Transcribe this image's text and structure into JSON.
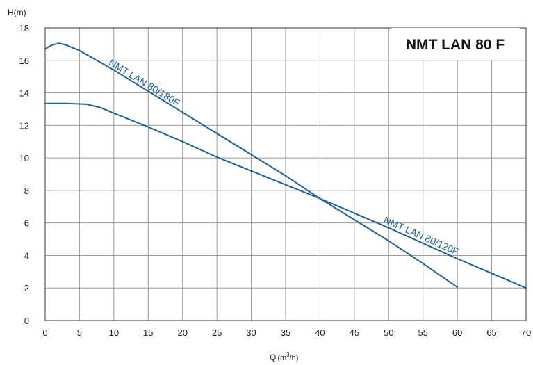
{
  "chart_data": {
    "type": "line",
    "title": "NMT LAN 80 F",
    "xlabel": "Q (m³/h)",
    "ylabel": "H(m)",
    "xlim": [
      0,
      70
    ],
    "ylim": [
      0,
      18
    ],
    "x_ticks": [
      "0",
      "5",
      "10",
      "15",
      "20",
      "25",
      "30",
      "35",
      "40",
      "45",
      "50",
      "55",
      "60",
      "65",
      "70"
    ],
    "y_ticks": [
      "0",
      "2",
      "4",
      "6",
      "8",
      "10",
      "12",
      "14",
      "16",
      "18"
    ],
    "grid": true,
    "line_color": "#1f5f9a",
    "series": [
      {
        "name": "NMT LAN 80/180F",
        "points": [
          [
            0,
            16.7
          ],
          [
            1,
            16.95
          ],
          [
            2,
            17.05
          ],
          [
            3,
            16.95
          ],
          [
            5,
            16.6
          ],
          [
            10,
            15.4
          ],
          [
            15,
            14.1
          ],
          [
            20,
            12.8
          ],
          [
            25,
            11.5
          ],
          [
            30,
            10.2
          ],
          [
            35,
            8.9
          ],
          [
            40,
            7.5
          ],
          [
            45,
            6.2
          ],
          [
            50,
            4.9
          ],
          [
            55,
            3.5
          ],
          [
            60,
            2.05
          ]
        ]
      },
      {
        "name": "NMT LAN 80/120F",
        "points": [
          [
            0,
            13.35
          ],
          [
            3,
            13.35
          ],
          [
            6,
            13.3
          ],
          [
            8,
            13.1
          ],
          [
            10,
            12.75
          ],
          [
            15,
            11.9
          ],
          [
            20,
            11.0
          ],
          [
            25,
            10.05
          ],
          [
            30,
            9.2
          ],
          [
            35,
            8.35
          ],
          [
            40,
            7.5
          ],
          [
            45,
            6.6
          ],
          [
            50,
            5.7
          ],
          [
            55,
            4.75
          ],
          [
            60,
            3.8
          ],
          [
            65,
            2.9
          ],
          [
            70,
            2.0
          ]
        ]
      }
    ]
  }
}
